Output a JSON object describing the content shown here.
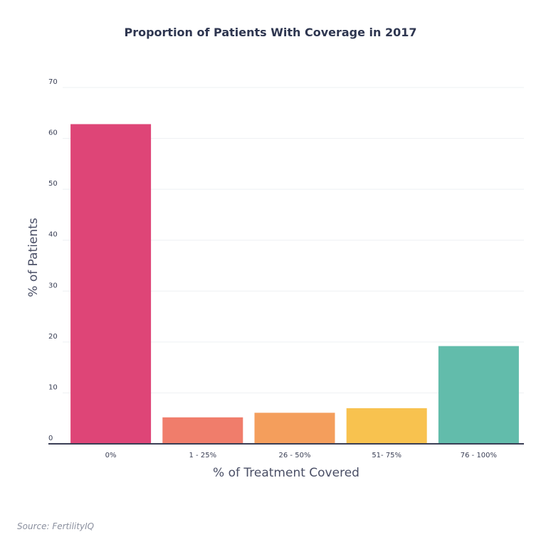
{
  "chart_data": {
    "type": "bar",
    "title": "Proportion of Patients With Coverage in 2017",
    "xlabel": "% of Treatment Covered",
    "ylabel": "% of Patients",
    "categories": [
      "0%",
      "1 - 25%",
      "26 - 50%",
      "51- 75%",
      "76 - 100%"
    ],
    "values": [
      62.8,
      5.2,
      6.1,
      7.0,
      19.2
    ],
    "colors": [
      "#de4577",
      "#f07d6b",
      "#f49e5c",
      "#f8c24f",
      "#62bcab"
    ],
    "ylim": [
      0,
      70
    ],
    "yticks": [
      0,
      10,
      20,
      30,
      40,
      50,
      60,
      70
    ],
    "grid": true
  },
  "source": "Source: FertilityIQ"
}
